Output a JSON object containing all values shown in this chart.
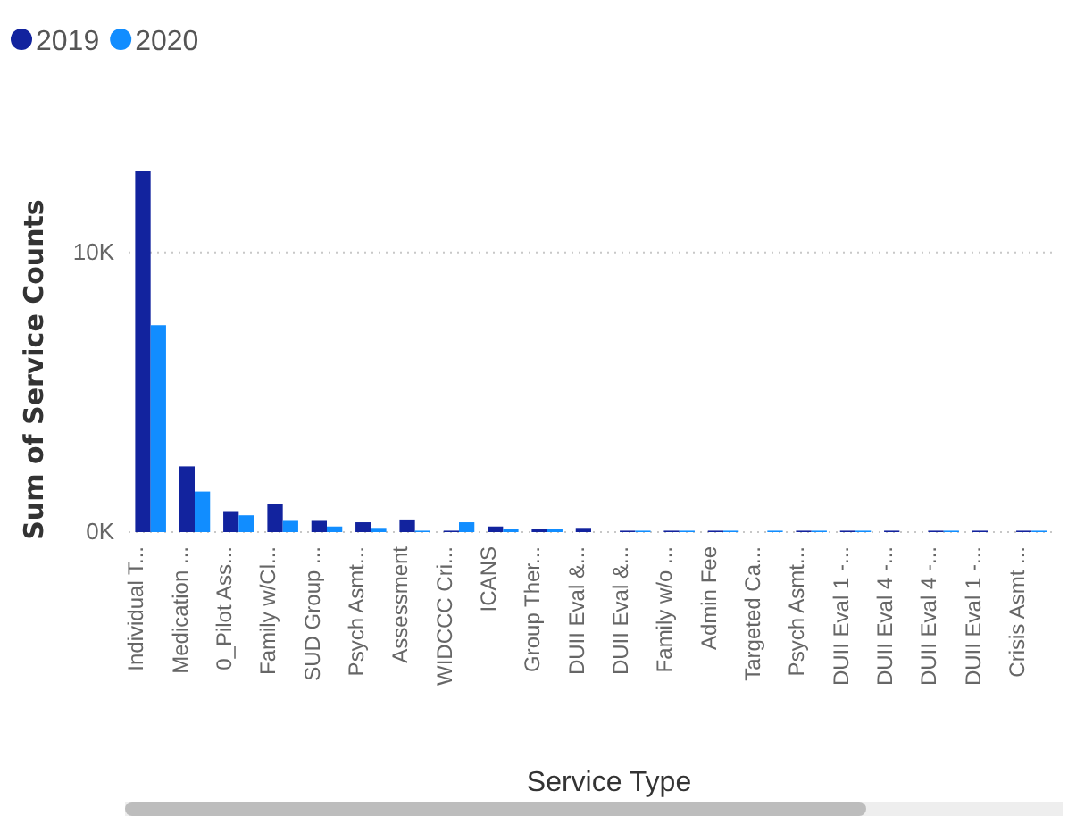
{
  "chart_data": {
    "type": "bar",
    "xlabel": "Service Type",
    "ylabel": "Sum of Service Counts",
    "categories": [
      "Individual T...",
      "Medication ...",
      "0_Pilot Ass...",
      "Family w/Cl...",
      "SUD Group ...",
      "Psych Asmt...",
      "Assessment",
      "WIDCCC Cri...",
      "ICANS",
      "Group Ther...",
      "DUII Eval &...",
      "DUII Eval &...",
      "Family w/o ...",
      "Admin Fee",
      "Targeted Ca...",
      "Psych Asmt...",
      "DUII Eval 1 -...",
      "DUII Eval 4 -...",
      "DUII Eval 4 -...",
      "DUII Eval 1 -...",
      "Crisis Asmt ..."
    ],
    "series": [
      {
        "name": "2019",
        "color": "#12239e",
        "values": [
          12900,
          2350,
          750,
          1000,
          400,
          350,
          450,
          50,
          200,
          100,
          150,
          50,
          50,
          50,
          null,
          50,
          50,
          50,
          50,
          50,
          50
        ]
      },
      {
        "name": "2020",
        "color": "#118dff",
        "values": [
          7400,
          1450,
          600,
          400,
          200,
          150,
          50,
          350,
          100,
          100,
          null,
          50,
          50,
          50,
          50,
          50,
          50,
          null,
          50,
          null,
          50
        ]
      }
    ],
    "yticks": [
      {
        "value": 0,
        "label": "0K"
      },
      {
        "value": 10000,
        "label": "10K"
      }
    ],
    "ylim": [
      0,
      12900
    ],
    "grid": "y",
    "legend": "top left"
  }
}
